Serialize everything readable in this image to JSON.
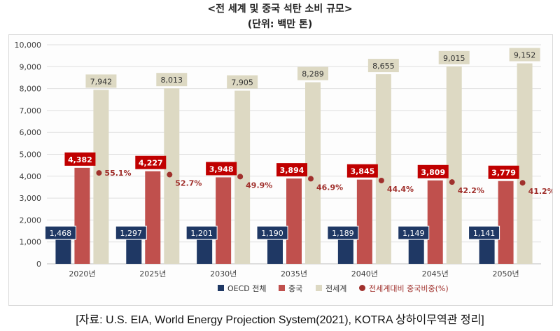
{
  "title": "<전 세계 및 중국 석탄 소비 규모>",
  "subtitle": "(단위: 백만 톤)",
  "source": "[자료: U.S. EIA, World Energy Projection System(2021), KOTRA 상하이무역관 정리]",
  "colors": {
    "oecd": "#1f3864",
    "china": "#c0504d",
    "world": "#ddd9c3",
    "china_label_bg": "#c00000",
    "share": "#a0302c",
    "grid": "#e0e0e0",
    "axis_text": "#404040"
  },
  "chart_data": {
    "type": "bar",
    "categories": [
      "2020년",
      "2025년",
      "2030년",
      "2035년",
      "2040년",
      "2045년",
      "2050년"
    ],
    "ylim": [
      0,
      10000
    ],
    "yticks": [
      "0",
      "1,000",
      "2,000",
      "3,000",
      "4,000",
      "5,000",
      "6,000",
      "7,000",
      "8,000",
      "9,000",
      "10,000"
    ],
    "series": [
      {
        "name": "OECD 전체",
        "values": [
          1468,
          1297,
          1201,
          1190,
          1189,
          1149,
          1141
        ],
        "labels": [
          "1,468",
          "1,297",
          "1,201",
          "1,190",
          "1,189",
          "1,149",
          "1,141"
        ]
      },
      {
        "name": "중국",
        "values": [
          4382,
          4227,
          3948,
          3894,
          3845,
          3809,
          3779
        ],
        "labels": [
          "4,382",
          "4,227",
          "3,948",
          "3,894",
          "3,845",
          "3,809",
          "3,779"
        ]
      },
      {
        "name": "전세계",
        "values": [
          7942,
          8013,
          7905,
          8289,
          8655,
          9015,
          9152
        ],
        "labels": [
          "7,942",
          "8,013",
          "7,905",
          "8,289",
          "8,655",
          "9,015",
          "9,152"
        ]
      }
    ],
    "share": {
      "name": "전세계대비 중국비중(%)",
      "values": [
        55.1,
        52.7,
        49.9,
        46.9,
        44.4,
        42.2,
        41.2
      ],
      "labels": [
        "55.1%",
        "52.7%",
        "49.9%",
        "46.9%",
        "44.4%",
        "42.2%",
        "41.2%"
      ]
    },
    "legend_position": "bottom",
    "grid": true
  }
}
